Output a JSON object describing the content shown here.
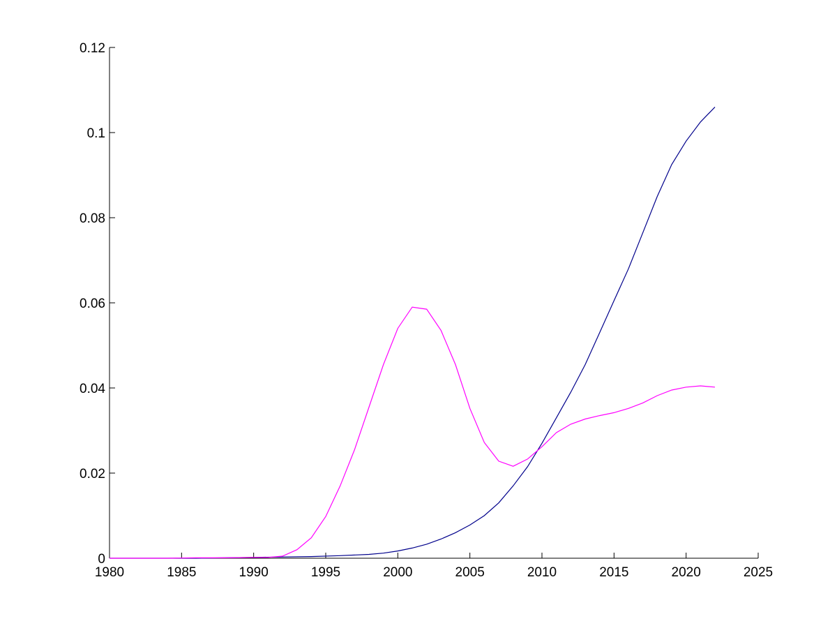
{
  "chart_data": {
    "type": "line",
    "title": "",
    "xlabel": "",
    "ylabel": "",
    "xlim": [
      1980,
      2025
    ],
    "ylim": [
      0,
      0.12
    ],
    "x_ticks": [
      1980,
      1985,
      1990,
      1995,
      2000,
      2005,
      2010,
      2015,
      2020,
      2025
    ],
    "y_ticks": [
      0,
      0.02,
      0.04,
      0.06,
      0.08,
      0.1,
      0.12
    ],
    "x_tick_labels": [
      "1980",
      "1985",
      "1990",
      "1995",
      "2000",
      "2005",
      "2010",
      "2015",
      "2020",
      "2025"
    ],
    "y_tick_labels": [
      "0",
      "0.02",
      "0.04",
      "0.06",
      "0.08",
      "0.1",
      "0.12"
    ],
    "grid": false,
    "legend": "none",
    "series": [
      {
        "color": "#00008b",
        "x": [
          1980,
          1982,
          1984,
          1986,
          1988,
          1990,
          1992,
          1994,
          1996,
          1998,
          1999,
          2000,
          2001,
          2002,
          2003,
          2004,
          2005,
          2006,
          2007,
          2008,
          2009,
          2010,
          2011,
          2012,
          2013,
          2014,
          2015,
          2016,
          2017,
          2018,
          2019,
          2020,
          2021,
          2022
        ],
        "y": [
          0.0,
          0.0,
          0.0,
          0.0,
          0.0001,
          0.0002,
          0.0003,
          0.0004,
          0.0006,
          0.0009,
          0.0012,
          0.0017,
          0.0024,
          0.0033,
          0.0045,
          0.006,
          0.0078,
          0.01,
          0.013,
          0.017,
          0.0215,
          0.027,
          0.033,
          0.039,
          0.0455,
          0.053,
          0.0605,
          0.068,
          0.0765,
          0.085,
          0.0925,
          0.098,
          0.1025,
          0.106
        ]
      },
      {
        "color": "#ff00ff",
        "x": [
          1980,
          1982,
          1984,
          1986,
          1988,
          1990,
          1991,
          1992,
          1993,
          1994,
          1995,
          1996,
          1997,
          1998,
          1999,
          2000,
          2001,
          2002,
          2003,
          2004,
          2005,
          2006,
          2007,
          2008,
          2009,
          2010,
          2011,
          2012,
          2013,
          2014,
          2015,
          2016,
          2017,
          2018,
          2019,
          2020,
          2021,
          2022
        ],
        "y": [
          0.0,
          0.0,
          0.0,
          0.0001,
          0.0001,
          0.0002,
          0.0002,
          0.0005,
          0.002,
          0.0048,
          0.0098,
          0.017,
          0.0255,
          0.0355,
          0.0455,
          0.054,
          0.059,
          0.0585,
          0.0535,
          0.0455,
          0.0352,
          0.0272,
          0.0228,
          0.0216,
          0.0233,
          0.0262,
          0.0295,
          0.0315,
          0.0327,
          0.0335,
          0.0342,
          0.0352,
          0.0365,
          0.0382,
          0.0395,
          0.0402,
          0.0405,
          0.0402
        ]
      }
    ]
  }
}
